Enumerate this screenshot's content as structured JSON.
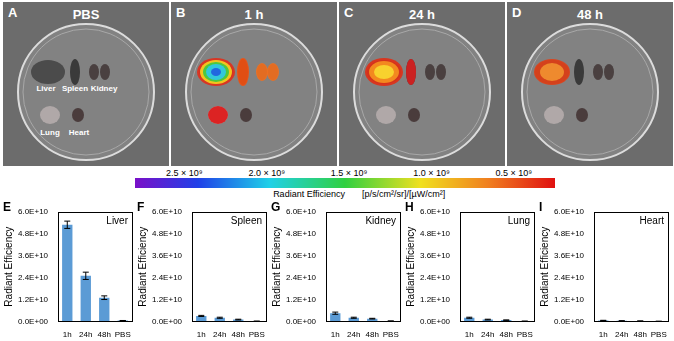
{
  "images": [
    {
      "panel": "A",
      "title": "PBS",
      "organ_labels": [
        [
          "Liver",
          "Spleen",
          "Kidney"
        ],
        [
          "Lung",
          "Heart"
        ]
      ]
    },
    {
      "panel": "B",
      "title": "1 h"
    },
    {
      "panel": "C",
      "title": "24 h"
    },
    {
      "panel": "D",
      "title": "48 h"
    }
  ],
  "colorbar": {
    "label": "Radiant Efficiency",
    "unit": "[p/s/cm²/sr]/[µW/cm²]",
    "range": [
      2800000000,
      250000000
    ],
    "ticks": [
      {
        "value": 2500000000,
        "label": "2.5 × 10⁹"
      },
      {
        "value": 2000000000,
        "label": "2.0 × 10⁹"
      },
      {
        "value": 1500000000,
        "label": "1.5 × 10⁹"
      },
      {
        "value": 1000000000,
        "label": "1.0 × 10⁹"
      },
      {
        "value": 500000000,
        "label": "0.5 × 10⁹"
      }
    ]
  },
  "chart_data": [
    {
      "type": "bar",
      "panel": "E",
      "title": "Liver",
      "ylabel": "Radiant Efficiency",
      "categories": [
        "1h",
        "24h",
        "48h",
        "PBS"
      ],
      "values": [
        53000000000,
        25000000000,
        13000000000,
        500000000
      ],
      "errors": [
        2000000000,
        2000000000,
        1000000000,
        0
      ],
      "color": "#5b9bd5",
      "ylim": [
        0,
        60000000000
      ],
      "yticks": [
        {
          "value": 0,
          "label": "0.0E+00"
        },
        {
          "value": 12000000000,
          "label": "1.2E+10"
        },
        {
          "value": 24000000000,
          "label": "2.4E+10"
        },
        {
          "value": 36000000000,
          "label": "3.6E+10"
        },
        {
          "value": 48000000000,
          "label": "4.8E+10"
        },
        {
          "value": 60000000000,
          "label": "6.0E+10"
        }
      ],
      "grid": false
    },
    {
      "type": "bar",
      "panel": "F",
      "title": "Spleen",
      "ylabel": "Radiant Efficiency",
      "categories": [
        "1h",
        "24h",
        "48h",
        "PBS"
      ],
      "values": [
        3000000000,
        2000000000,
        1000000000,
        100000000
      ],
      "errors": [
        300000000,
        300000000,
        200000000,
        0
      ],
      "color": "#5b9bd5",
      "ylim": [
        0,
        60000000000
      ],
      "yticks": [
        {
          "value": 0,
          "label": "0.0E+00"
        },
        {
          "value": 12000000000,
          "label": "1.2E+10"
        },
        {
          "value": 24000000000,
          "label": "2.4E+10"
        },
        {
          "value": 36000000000,
          "label": "3.6E+10"
        },
        {
          "value": 48000000000,
          "label": "4.8E+10"
        },
        {
          "value": 60000000000,
          "label": "6.0E+10"
        }
      ],
      "grid": false
    },
    {
      "type": "bar",
      "panel": "G",
      "title": "Kidney",
      "ylabel": "Radiant Efficiency",
      "categories": [
        "1h",
        "24h",
        "48h",
        "PBS"
      ],
      "values": [
        4500000000,
        2000000000,
        1500000000,
        200000000
      ],
      "errors": [
        600000000,
        300000000,
        200000000,
        0
      ],
      "color": "#5b9bd5",
      "ylim": [
        0,
        60000000000
      ],
      "yticks": [
        {
          "value": 0,
          "label": "0.0E+00"
        },
        {
          "value": 12000000000,
          "label": "1.2E+10"
        },
        {
          "value": 24000000000,
          "label": "2.4E+10"
        },
        {
          "value": 36000000000,
          "label": "3.6E+10"
        },
        {
          "value": 48000000000,
          "label": "4.8E+10"
        },
        {
          "value": 60000000000,
          "label": "6.0E+10"
        }
      ],
      "grid": false
    },
    {
      "type": "bar",
      "panel": "H",
      "title": "Lung",
      "ylabel": "Radiant Efficiency",
      "categories": [
        "1h",
        "24h",
        "48h",
        "PBS"
      ],
      "values": [
        2000000000,
        1000000000,
        700000000,
        100000000
      ],
      "errors": [
        300000000,
        200000000,
        100000000,
        0
      ],
      "color": "#5b9bd5",
      "ylim": [
        0,
        60000000000
      ],
      "yticks": [
        {
          "value": 0,
          "label": "0.0E+00"
        },
        {
          "value": 12000000000,
          "label": "1.2E+10"
        },
        {
          "value": 24000000000,
          "label": "2.4E+10"
        },
        {
          "value": 36000000000,
          "label": "3.6E+10"
        },
        {
          "value": 48000000000,
          "label": "4.8E+10"
        },
        {
          "value": 60000000000,
          "label": "6.0E+10"
        }
      ],
      "grid": false
    },
    {
      "type": "bar",
      "panel": "I",
      "title": "Heart",
      "ylabel": "Radiant Efficiency",
      "categories": [
        "1h",
        "24h",
        "48h",
        "PBS"
      ],
      "values": [
        500000000,
        300000000,
        200000000,
        50000000
      ],
      "errors": [
        100000000,
        50000000,
        50000000,
        0
      ],
      "color": "#5b9bd5",
      "ylim": [
        0,
        60000000000
      ],
      "yticks": [
        {
          "value": 0,
          "label": "0.0E+00"
        },
        {
          "value": 12000000000,
          "label": "1.2E+10"
        },
        {
          "value": 24000000000,
          "label": "2.4E+10"
        },
        {
          "value": 36000000000,
          "label": "3.6E+10"
        },
        {
          "value": 48000000000,
          "label": "4.8E+10"
        },
        {
          "value": 60000000000,
          "label": "6.0E+10"
        }
      ],
      "grid": false
    }
  ]
}
